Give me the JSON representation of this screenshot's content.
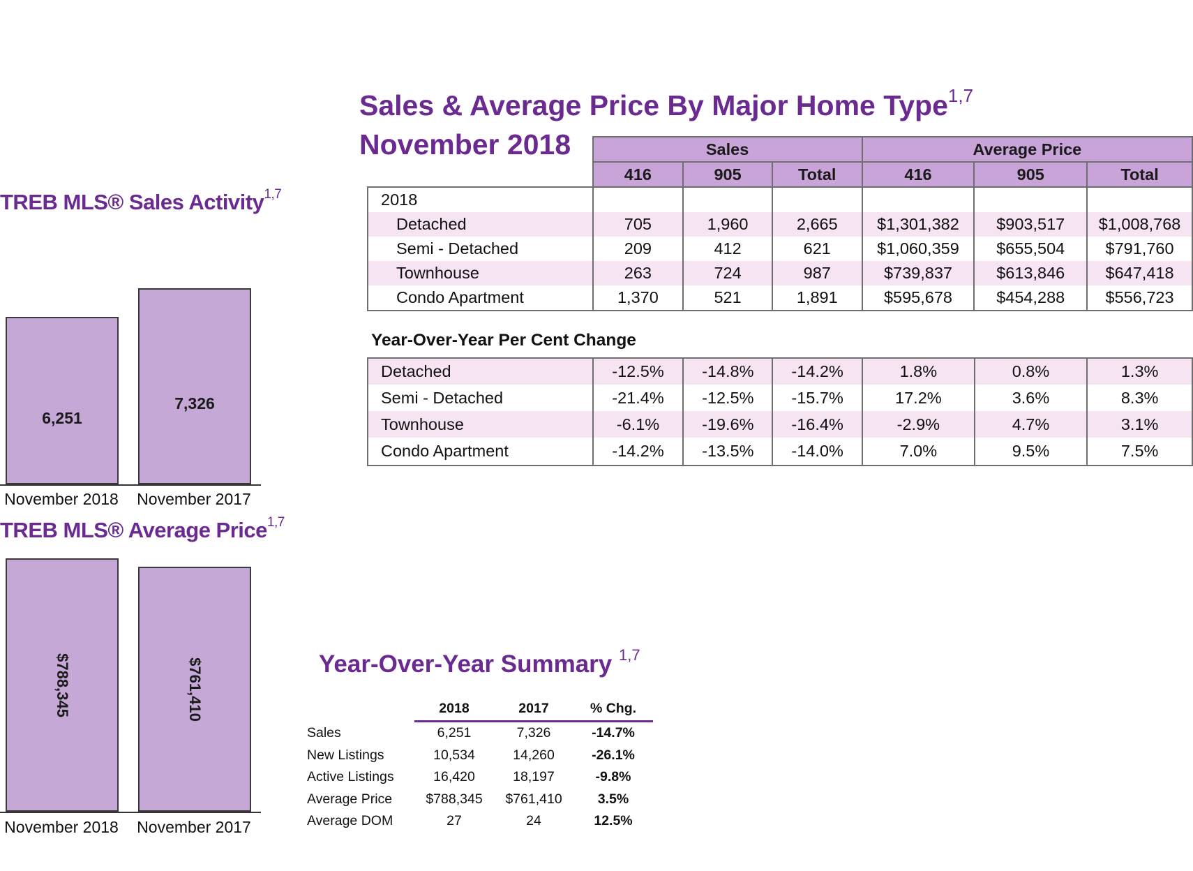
{
  "sales_activity": {
    "title": "TREB MLS® Sales Activity",
    "footnote": "1,7",
    "bars": [
      {
        "category": "November 2018",
        "value": 6251,
        "label": "6,251"
      },
      {
        "category": "November 2017",
        "value": 7326,
        "label": "7,326"
      }
    ]
  },
  "average_price": {
    "title": "TREB MLS® Average Price",
    "footnote": "1,7",
    "bars": [
      {
        "category": "November 2018",
        "value": 788345,
        "label": "$788,345"
      },
      {
        "category": "November 2017",
        "value": 761410,
        "label": "$761,410"
      }
    ]
  },
  "major_home_type": {
    "title": "Sales & Average Price By Major Home Type",
    "footnote": "1,7",
    "subtitle": "November 2018",
    "group_headers": [
      "Sales",
      "Average Price"
    ],
    "column_headers": [
      "416",
      "905",
      "Total",
      "416",
      "905",
      "Total"
    ],
    "year_label": "2018",
    "rows": [
      {
        "type": "Detached",
        "values": [
          "705",
          "1,960",
          "2,665",
          "$1,301,382",
          "$903,517",
          "$1,008,768"
        ]
      },
      {
        "type": "Semi - Detached",
        "values": [
          "209",
          "412",
          "621",
          "$1,060,359",
          "$655,504",
          "$791,760"
        ]
      },
      {
        "type": "Townhouse",
        "values": [
          "263",
          "724",
          "987",
          "$739,837",
          "$613,846",
          "$647,418"
        ]
      },
      {
        "type": "Condo Apartment",
        "values": [
          "1,370",
          "521",
          "1,891",
          "$595,678",
          "$454,288",
          "$556,723"
        ]
      }
    ],
    "yoy_title": "Year-Over-Year Per Cent Change",
    "yoy_rows": [
      {
        "type": "Detached",
        "values": [
          "-12.5%",
          "-14.8%",
          "-14.2%",
          "1.8%",
          "0.8%",
          "1.3%"
        ]
      },
      {
        "type": "Semi - Detached",
        "values": [
          "-21.4%",
          "-12.5%",
          "-15.7%",
          "17.2%",
          "3.6%",
          "8.3%"
        ]
      },
      {
        "type": "Townhouse",
        "values": [
          "-6.1%",
          "-19.6%",
          "-16.4%",
          "-2.9%",
          "4.7%",
          "3.1%"
        ]
      },
      {
        "type": "Condo Apartment",
        "values": [
          "-14.2%",
          "-13.5%",
          "-14.0%",
          "7.0%",
          "9.5%",
          "7.5%"
        ]
      }
    ]
  },
  "summary": {
    "title": "Year-Over-Year Summary",
    "footnote": "1,7",
    "headers": [
      "2018",
      "2017",
      "% Chg."
    ],
    "rows": [
      {
        "label": "Sales",
        "y2018": "6,251",
        "y2017": "7,326",
        "chg": "-14.7%"
      },
      {
        "label": "New Listings",
        "y2018": "10,534",
        "y2017": "14,260",
        "chg": "-26.1%"
      },
      {
        "label": "Active Listings",
        "y2018": "16,420",
        "y2017": "18,197",
        "chg": "-9.8%"
      },
      {
        "label": "Average Price",
        "y2018": "$788,345",
        "y2017": "$761,410",
        "chg": "3.5%"
      },
      {
        "label": "Average DOM",
        "y2018": "27",
        "y2017": "24",
        "chg": "12.5%"
      }
    ]
  },
  "chart_data": [
    {
      "type": "bar",
      "title": "TREB MLS® Sales Activity",
      "categories": [
        "November 2018",
        "November 2017"
      ],
      "values": [
        6251,
        7326
      ],
      "xlabel": "",
      "ylabel": "",
      "ylim": [
        0,
        8400
      ]
    },
    {
      "type": "bar",
      "title": "TREB MLS® Average Price",
      "categories": [
        "November 2018",
        "November 2017"
      ],
      "values": [
        788345,
        761410
      ],
      "xlabel": "",
      "ylabel": "",
      "ylim": [
        0,
        788345
      ]
    }
  ],
  "colors": {
    "title_purple": "#6a2a90",
    "bar_fill": "#c5a8d5",
    "header_fill": "#c9a4d8",
    "row_pink": "#f6e4f2"
  }
}
